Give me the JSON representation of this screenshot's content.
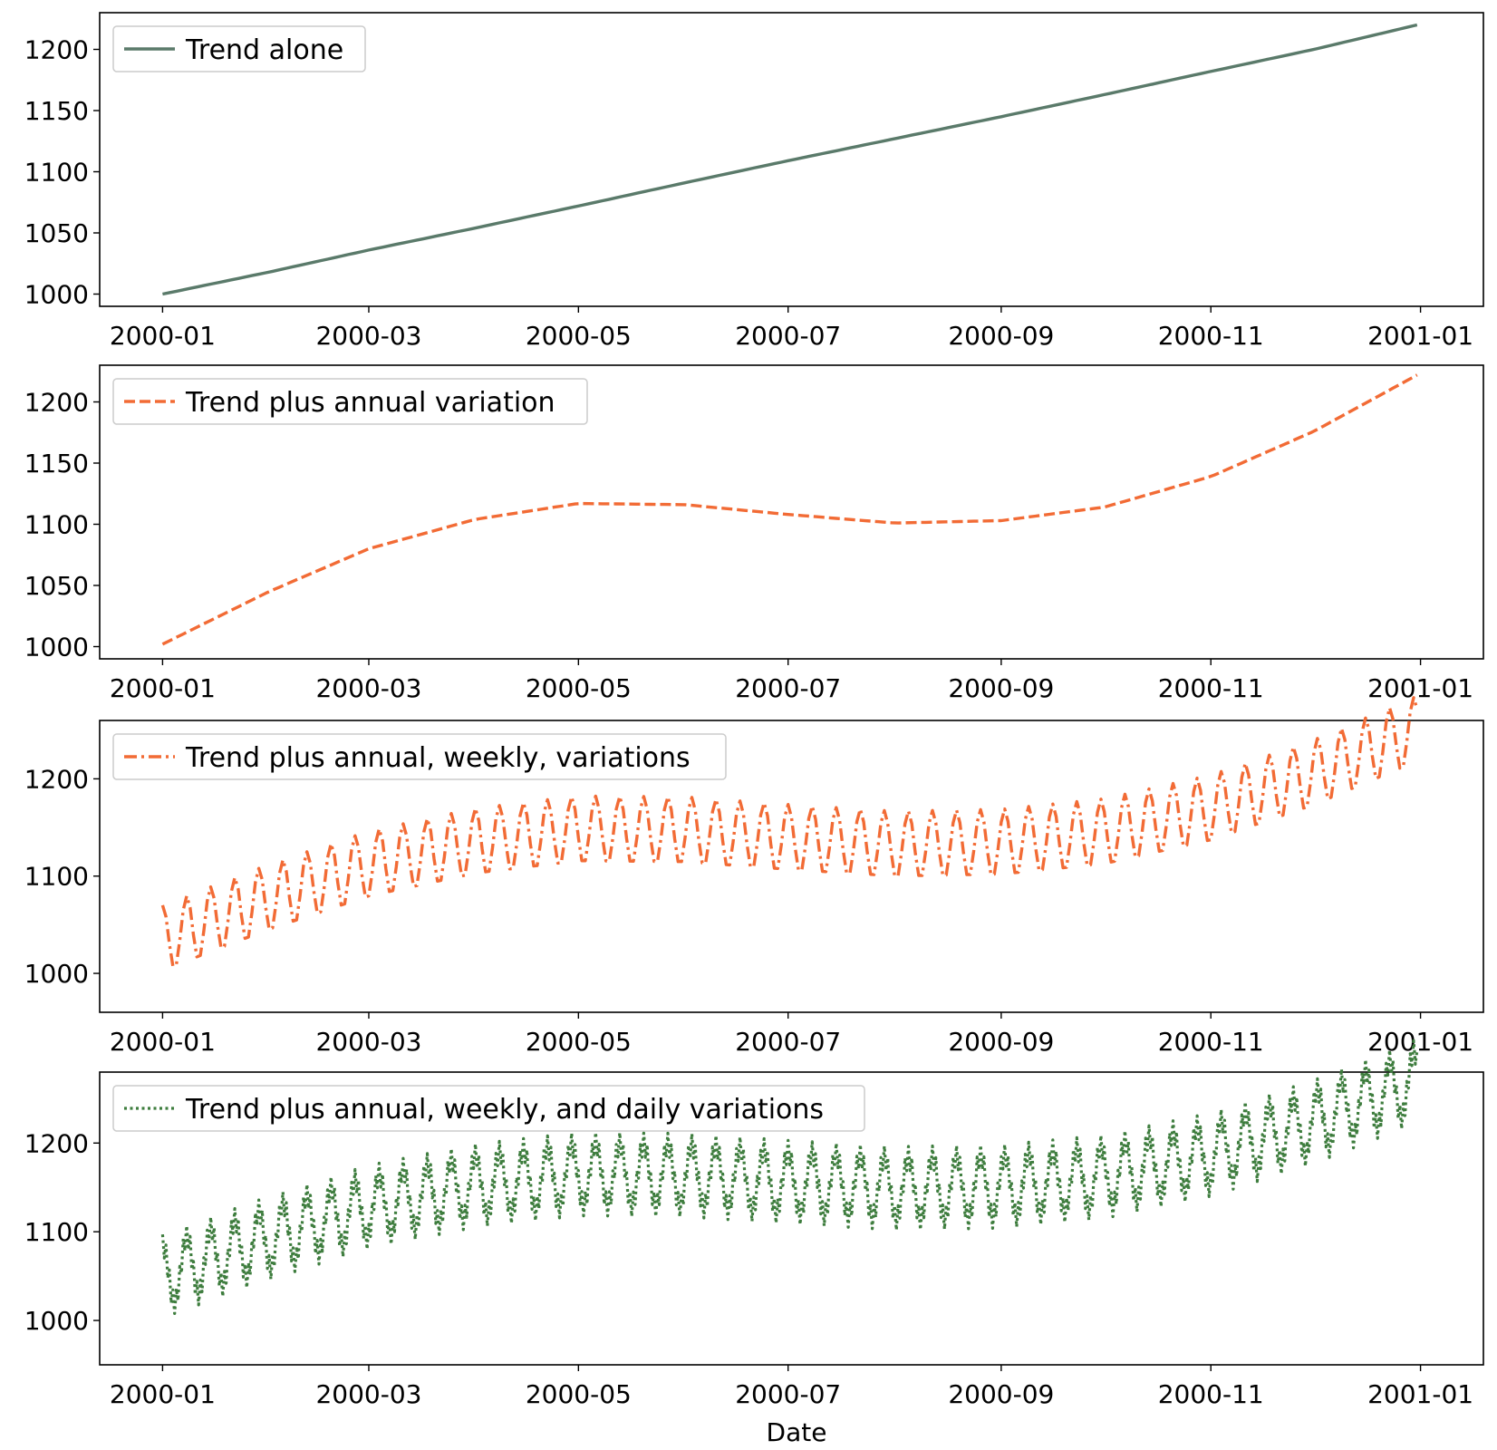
{
  "figure": {
    "xlabel": "Date",
    "x_tick_labels": [
      "2000-01",
      "2000-03",
      "2000-05",
      "2000-07",
      "2000-09",
      "2000-11",
      "2001-01"
    ]
  },
  "chart_data": [
    {
      "type": "line",
      "xlabel": "",
      "ylabel": "",
      "legend": "top-left",
      "grid": false,
      "xlim": [
        "2000-01-01",
        "2001-01-01"
      ],
      "ylim": [
        990,
        1230
      ],
      "y_ticks": [
        1000,
        1050,
        1100,
        1150,
        1200
      ],
      "x_ticks": [
        "2000-01-01",
        "2000-03-01",
        "2000-05-01",
        "2000-07-01",
        "2000-09-01",
        "2000-11-01",
        "2001-01-01"
      ],
      "x_tick_labels": [
        "2000-01",
        "2000-03",
        "2000-05",
        "2000-07",
        "2000-09",
        "2000-11",
        "2001-01"
      ],
      "series": [
        {
          "name": "Trend alone",
          "color": "#5a7a6a",
          "style": "solid",
          "x": [
            "2000-01-01",
            "2000-02-01",
            "2000-03-01",
            "2000-04-01",
            "2000-05-01",
            "2000-06-01",
            "2000-07-01",
            "2000-08-01",
            "2000-09-01",
            "2000-10-01",
            "2000-11-01",
            "2000-12-01",
            "2000-12-31"
          ],
          "y": [
            1000,
            1018,
            1036,
            1054,
            1072,
            1091,
            1109,
            1127,
            1145,
            1163,
            1182,
            1200,
            1220
          ]
        }
      ]
    },
    {
      "type": "line",
      "xlabel": "",
      "ylabel": "",
      "legend": "top-left",
      "grid": false,
      "xlim": [
        "2000-01-01",
        "2001-01-01"
      ],
      "ylim": [
        990,
        1230
      ],
      "y_ticks": [
        1000,
        1050,
        1100,
        1150,
        1200
      ],
      "x_ticks": [
        "2000-01-01",
        "2000-03-01",
        "2000-05-01",
        "2000-07-01",
        "2000-09-01",
        "2000-11-01",
        "2001-01-01"
      ],
      "x_tick_labels": [
        "2000-01",
        "2000-03",
        "2000-05",
        "2000-07",
        "2000-09",
        "2000-11",
        "2001-01"
      ],
      "series": [
        {
          "name": "Trend plus annual variation",
          "color": "#f26b35",
          "style": "dashed",
          "x": [
            "2000-01-01",
            "2000-02-01",
            "2000-03-01",
            "2000-04-01",
            "2000-05-01",
            "2000-06-01",
            "2000-07-01",
            "2000-08-01",
            "2000-09-01",
            "2000-10-01",
            "2000-11-01",
            "2000-12-01",
            "2000-12-31"
          ],
          "y": [
            1002,
            1045,
            1080,
            1104,
            1117,
            1116,
            1108,
            1101,
            1103,
            1114,
            1139,
            1176,
            1222
          ]
        }
      ]
    },
    {
      "type": "line",
      "xlabel": "",
      "ylabel": "",
      "legend": "top-left",
      "grid": false,
      "xlim": [
        "2000-01-01",
        "2001-01-01"
      ],
      "ylim": [
        960,
        1260
      ],
      "y_ticks": [
        1000,
        1100,
        1200
      ],
      "x_ticks": [
        "2000-01-01",
        "2000-03-01",
        "2000-05-01",
        "2000-07-01",
        "2000-09-01",
        "2000-11-01",
        "2001-01-01"
      ],
      "x_tick_labels": [
        "2000-01",
        "2000-03",
        "2000-05",
        "2000-07",
        "2000-09",
        "2000-11",
        "2001-01"
      ],
      "series": [
        {
          "name": "Trend plus annual, weekly, variations",
          "color": "#f26b35",
          "style": "dashdot",
          "x": [
            "2000-01-01",
            "2001-01-01"
          ],
          "y": [
            1035,
            1250
          ],
          "weekly_amplitude": 35
        }
      ]
    },
    {
      "type": "line",
      "xlabel": "Date",
      "ylabel": "",
      "legend": "top-left",
      "grid": false,
      "xlim": [
        "2000-01-01",
        "2001-01-01"
      ],
      "ylim": [
        950,
        1280
      ],
      "y_ticks": [
        1000,
        1100,
        1200
      ],
      "x_ticks": [
        "2000-01-01",
        "2000-03-01",
        "2000-05-01",
        "2000-07-01",
        "2000-09-01",
        "2000-11-01",
        "2001-01-01"
      ],
      "x_tick_labels": [
        "2000-01",
        "2000-03",
        "2000-05",
        "2000-07",
        "2000-09",
        "2000-11",
        "2001-01"
      ],
      "series": [
        {
          "name": "Trend plus annual, weekly, and daily variations",
          "color": "#3e7d3e",
          "style": "dotted",
          "x": [
            "2000-01-01",
            "2001-01-01"
          ],
          "y": [
            1050,
            1270
          ],
          "weekly_amplitude": 35,
          "daily_amplitude": 12
        }
      ]
    }
  ]
}
